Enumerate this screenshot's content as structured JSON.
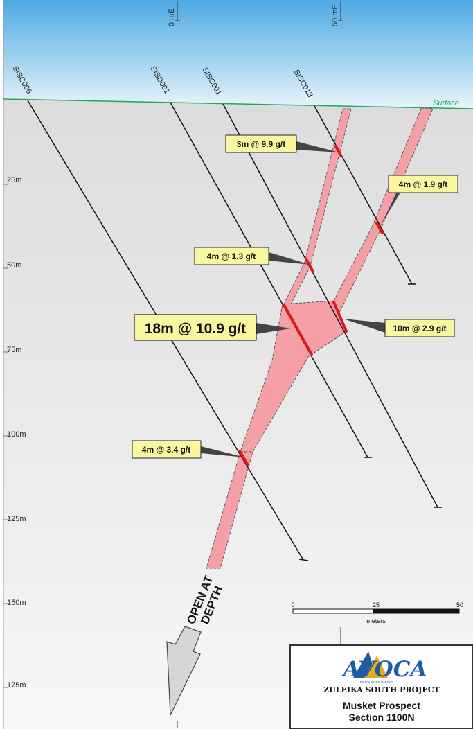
{
  "grid": {
    "easting_labels": [
      "0 mE",
      "50 mE"
    ],
    "depth_labels": [
      "25m",
      "50m",
      "75m",
      "100m",
      "125m",
      "150m",
      "175m"
    ]
  },
  "surface_label": "Surface",
  "holes": [
    {
      "id": "SISC006"
    },
    {
      "id": "SISD001"
    },
    {
      "id": "SISC001"
    },
    {
      "id": "SISC013"
    }
  ],
  "intercepts": [
    {
      "text": "3m @ 9.9 g/t"
    },
    {
      "text": "4m @ 1.9 g/t"
    },
    {
      "text": "4m @ 1.3 g/t"
    },
    {
      "text": "18m @ 10.9 g/t"
    },
    {
      "text": "10m @ 2.9 g/t"
    },
    {
      "text": "4m @ 3.4 g/t"
    }
  ],
  "open_at_depth": [
    "OPEN AT",
    "DEPTH"
  ],
  "scale_bar": {
    "ticks": [
      "0",
      "25",
      "50"
    ],
    "unit": "meters"
  },
  "title_block": {
    "logo_text": "AVOCA",
    "logo_subtitle": "RESOURCES LIMITED",
    "project": "ZULEIKA SOUTH PROJECT",
    "prospect": "Musket Prospect",
    "section": "Section 1100N"
  },
  "colors": {
    "sky_top": "#4da9e3",
    "sky_bottom": "#eaf5fc",
    "ground": "#e3e3e3",
    "lode_fill": "#f4a0a6",
    "lode_stroke": "#555555",
    "intercept_mark": "#e01818",
    "label_fill": "#fbf6a0",
    "surface_line": "#1ea85a",
    "logo_blue": "#1f5aa8"
  }
}
